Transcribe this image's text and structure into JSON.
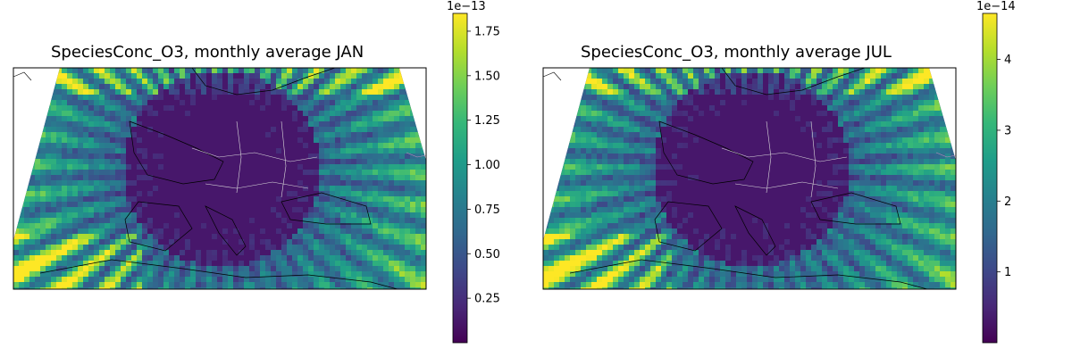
{
  "panels": [
    {
      "title": "SpeciesConc_O3, monthly average JAN",
      "colorbar": {
        "colormap": "viridis",
        "exponent_label": "1e−13",
        "range": [
          0.0,
          1.85
        ],
        "ticks": [
          {
            "value": 0.25,
            "label": "0.25"
          },
          {
            "value": 0.5,
            "label": "0.50"
          },
          {
            "value": 0.75,
            "label": "0.75"
          },
          {
            "value": 1.0,
            "label": "1.00"
          },
          {
            "value": 1.25,
            "label": "1.25"
          },
          {
            "value": 1.5,
            "label": "1.50"
          },
          {
            "value": 1.75,
            "label": "1.75"
          }
        ]
      }
    },
    {
      "title": "SpeciesConc_O3, monthly average JUL",
      "colorbar": {
        "colormap": "viridis",
        "exponent_label": "1e−14",
        "range": [
          0.0,
          4.65
        ],
        "ticks": [
          {
            "value": 1,
            "label": "1"
          },
          {
            "value": 2,
            "label": "2"
          },
          {
            "value": 3,
            "label": "3"
          },
          {
            "value": 4,
            "label": "4"
          }
        ]
      }
    }
  ],
  "colors": {
    "viridis": [
      "#440154",
      "#482878",
      "#3e4989",
      "#31688e",
      "#26828e",
      "#1f9e89",
      "#35b779",
      "#6ece58",
      "#b5de2b",
      "#fde725"
    ],
    "coastline": "#000000",
    "border": "#dddddd"
  }
}
